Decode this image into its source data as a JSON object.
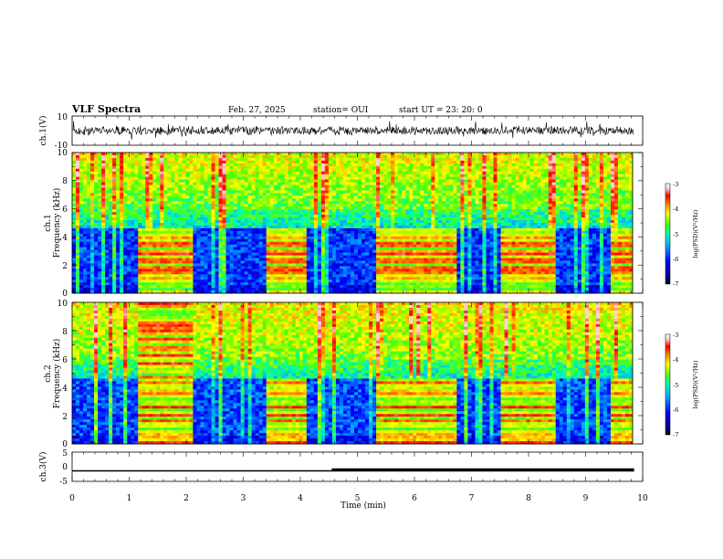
{
  "header": {
    "title": "VLF Spectra",
    "date": "Feb. 27, 2025",
    "station": "station= OUI",
    "start": "start UT = 23: 20: 0"
  },
  "colorbar": {
    "label": "log(PSD)(V²/Hz)",
    "ticks": [
      "-3",
      "-4",
      "-5",
      "-6",
      "-7"
    ]
  },
  "colors": {
    "spectrogram_scale": [
      "#000080",
      "#0000ff",
      "#00aaff",
      "#00ffaa",
      "#55ff00",
      "#ffff00",
      "#ff8000",
      "#ff0000",
      "#ffcccc",
      "#ffffff"
    ]
  },
  "chart_data": [
    {
      "type": "line",
      "ylabel": "ch.1(V)",
      "ylim": [
        -10,
        10
      ],
      "yticks": [
        "10",
        "-10"
      ],
      "xlim": [
        0,
        10
      ],
      "note_series": "noisy waveform centred near 0 V"
    },
    {
      "type": "heatmap",
      "ylabel": "ch.1 Frequency (kHz)",
      "ylim": [
        0,
        10
      ],
      "yticks": [
        "10",
        "8",
        "6",
        "4",
        "2",
        "0"
      ],
      "xlim": [
        0,
        10
      ],
      "zlim": [
        -7,
        -3
      ],
      "active_intervals_min": [
        [
          1.15,
          2.1
        ],
        [
          3.4,
          4.1
        ],
        [
          5.3,
          6.75
        ],
        [
          7.5,
          8.5
        ],
        [
          9.45,
          9.8
        ]
      ]
    },
    {
      "type": "heatmap",
      "ylabel": "ch.2 Frequency (kHz)",
      "ylim": [
        0,
        10
      ],
      "yticks": [
        "10",
        "8",
        "6",
        "4",
        "2",
        "0"
      ],
      "xlim": [
        0,
        10
      ],
      "zlim": [
        -7,
        -3
      ],
      "active_intervals_min": [
        [
          1.15,
          2.1
        ],
        [
          3.4,
          4.1
        ],
        [
          5.3,
          6.75
        ],
        [
          7.5,
          8.5
        ],
        [
          9.45,
          9.8
        ]
      ]
    },
    {
      "type": "line",
      "ylabel": "ch.3(V)",
      "xlabel": "Time (min)",
      "ylim": [
        -5,
        5
      ],
      "yticks": [
        "5",
        "0",
        "-5"
      ],
      "xlim": [
        0,
        10
      ],
      "xticks": [
        "0",
        "1",
        "2",
        "3",
        "4",
        "5",
        "6",
        "7",
        "8",
        "9",
        "10"
      ],
      "x": [
        0,
        4.55,
        4.55,
        9.85
      ],
      "y": [
        -1.4,
        -1.4,
        -1.1,
        -1.1
      ]
    }
  ]
}
